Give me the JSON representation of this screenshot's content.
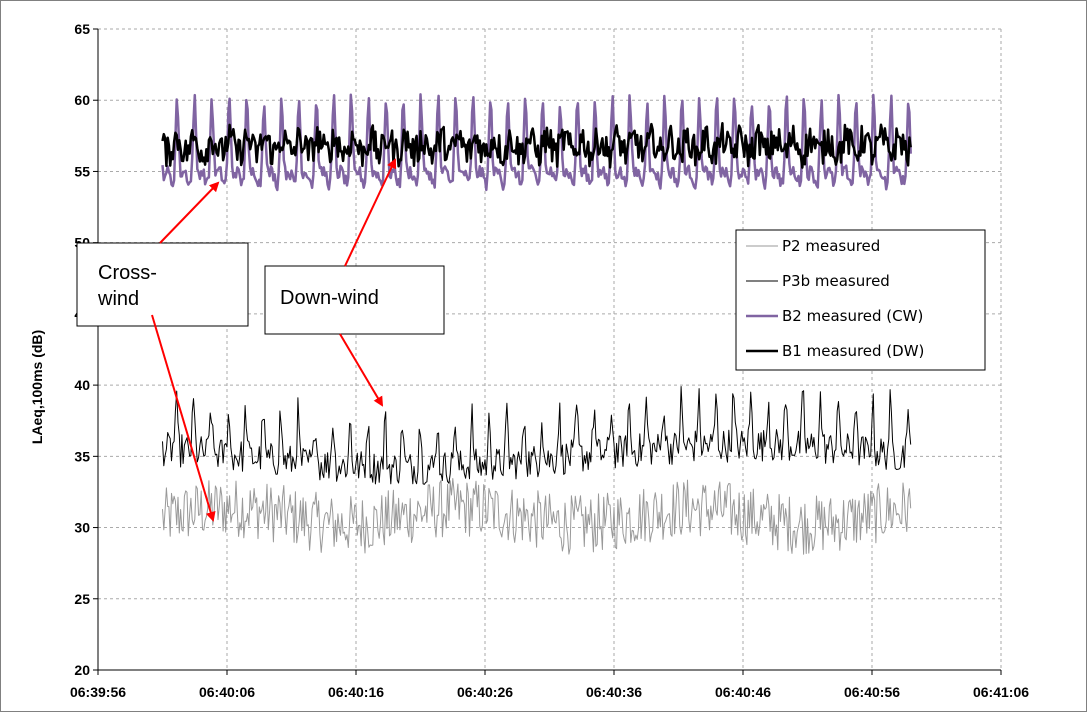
{
  "chart_data": {
    "type": "line",
    "ylabel": "LAeq,100ms (dB)",
    "xlabel": "",
    "ylim": [
      20,
      65
    ],
    "yticks": [
      20,
      25,
      30,
      35,
      40,
      45,
      50,
      55,
      60,
      65
    ],
    "xlim": [
      "06:39:56",
      "06:41:06"
    ],
    "xticks": [
      "06:39:56",
      "06:40:06",
      "06:40:16",
      "06:40:26",
      "06:40:36",
      "06:40:46",
      "06:40:56",
      "06:41:06"
    ],
    "grid": true,
    "legend_position": "right",
    "x_start": "06:40:01",
    "x_end": "06:40:59",
    "samples_per_second": 10,
    "series": [
      {
        "name": "P2 measured",
        "color": "#999999",
        "line_width": 1,
        "mean": 30.8,
        "range": [
          27.0,
          35.2
        ],
        "description": "noisy, no clear periodicity"
      },
      {
        "name": "P3b measured",
        "color": "#000000",
        "line_width": 1,
        "mean": 36.2,
        "range": [
          32.8,
          41.2
        ],
        "period_s": 1.35,
        "description": "noisy periodic"
      },
      {
        "name": "B2 measured (CW)",
        "color": "#8064a2",
        "line_width": 2.5,
        "mean": 56.8,
        "range": [
          53.5,
          61.8
        ],
        "period_s": 1.35,
        "description": "strong periodic modulation"
      },
      {
        "name": "B1 measured (DW)",
        "color": "#000000",
        "line_width": 2.5,
        "mean": 56.8,
        "range": [
          55.0,
          58.5
        ],
        "description": "small fluctuations"
      }
    ],
    "annotations": [
      {
        "text": "Cross-wind"
      },
      {
        "text": "Down-wind"
      }
    ]
  }
}
